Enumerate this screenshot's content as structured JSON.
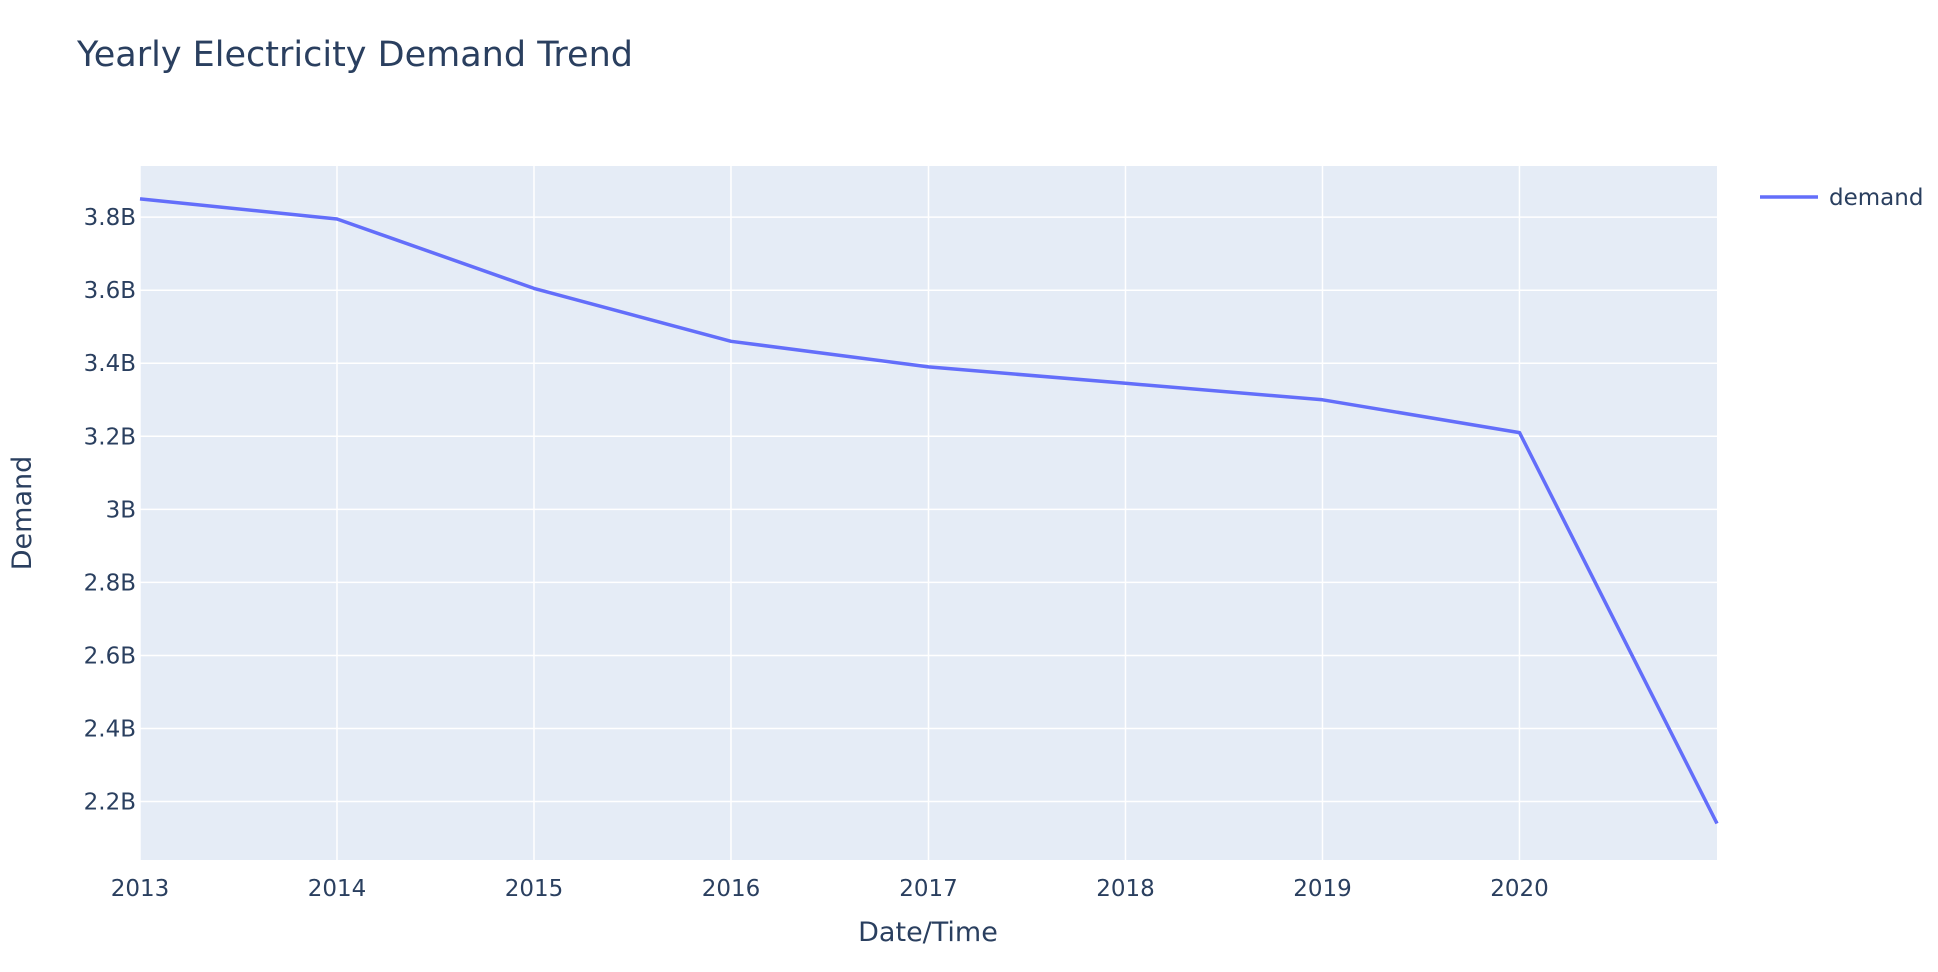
{
  "chart_data": {
    "type": "line",
    "title": "Yearly Electricity Demand Trend",
    "xlabel": "Date/Time",
    "ylabel": "Demand",
    "x_ticks": [
      "2013",
      "2014",
      "2015",
      "2016",
      "2017",
      "2018",
      "2019",
      "2020"
    ],
    "y_ticks": [
      "2.2B",
      "2.4B",
      "2.6B",
      "2.8B",
      "3B",
      "3.2B",
      "3.4B",
      "3.6B",
      "3.8B"
    ],
    "y_tick_values": [
      2200000000,
      2400000000,
      2600000000,
      2800000000,
      3000000000,
      3200000000,
      3400000000,
      3600000000,
      3800000000
    ],
    "xlim": [
      "2013-01-01",
      "2021-01-01"
    ],
    "ylim": [
      2040000000,
      3940000000
    ],
    "series": [
      {
        "name": "demand",
        "color": "#636efa",
        "x": [
          "2013-01-01",
          "2014-01-01",
          "2015-01-01",
          "2016-01-01",
          "2017-01-01",
          "2018-01-01",
          "2019-01-01",
          "2020-01-01",
          "2021-01-01"
        ],
        "y": [
          3850000000,
          3795000000,
          3605000000,
          3460000000,
          3390000000,
          3345000000,
          3300000000,
          3210000000,
          2140000000
        ]
      }
    ],
    "grid": true,
    "legend_position": "top-right"
  }
}
